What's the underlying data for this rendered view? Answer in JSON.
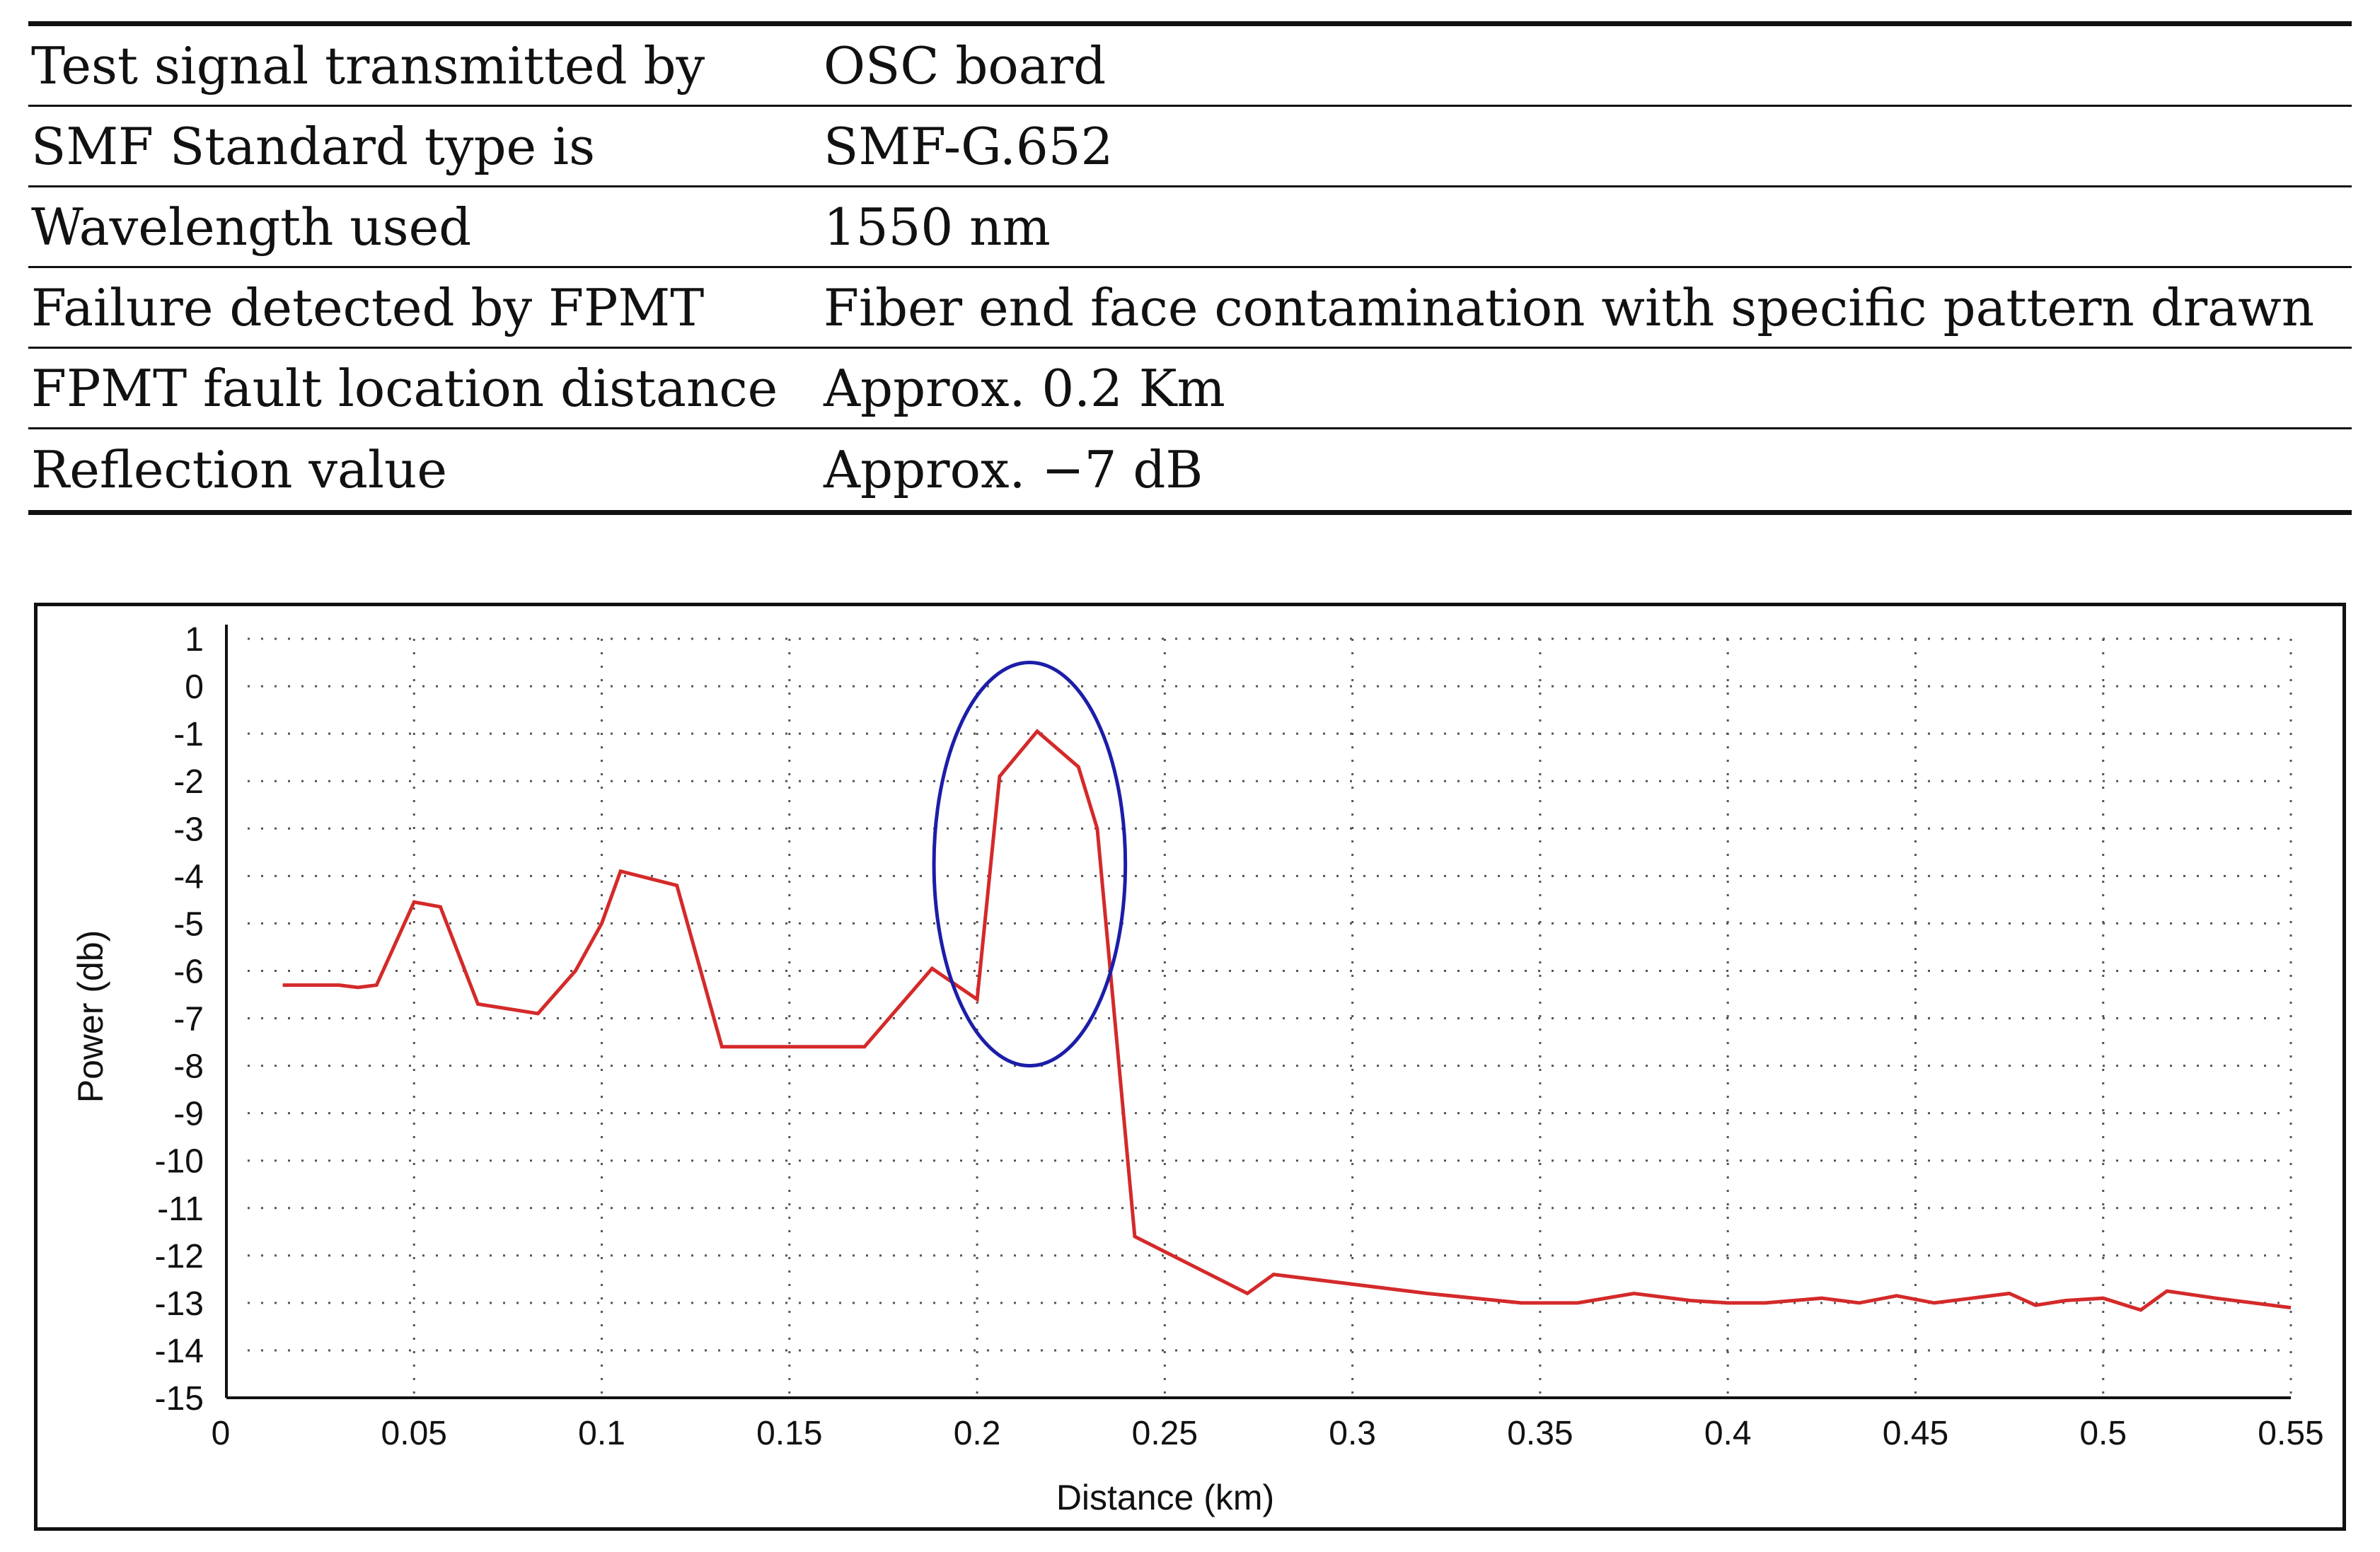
{
  "table": {
    "rows": [
      {
        "label": "Test signal transmitted by",
        "value": "OSC board"
      },
      {
        "label": "SMF Standard type is",
        "value": "SMF-G.652"
      },
      {
        "label": "Wavelength used",
        "value": "1550 nm"
      },
      {
        "label": "Failure detected by FPMT",
        "value": "Fiber end face contamination with specific pattern drawn"
      },
      {
        "label": "FPMT fault location distance",
        "value": "Approx. 0.2 Km"
      },
      {
        "label": "Reflection value",
        "value": "Approx. −7 dB"
      }
    ]
  },
  "chart_data": {
    "type": "line",
    "title": "",
    "xlabel": "Distance (km)",
    "ylabel": "Power (db)",
    "xlim": [
      0,
      0.55
    ],
    "ylim": [
      -15,
      1
    ],
    "x_ticks": [
      0,
      0.05,
      0.1,
      0.15,
      0.2,
      0.25,
      0.3,
      0.35,
      0.4,
      0.45,
      0.5,
      0.55
    ],
    "x_tick_labels": [
      "0",
      "0.05",
      "0.1",
      "0.15",
      "0.2",
      "0.25",
      "0.3",
      "0.35",
      "0.4",
      "0.45",
      "0.5",
      "0.55"
    ],
    "y_ticks": [
      1,
      0,
      -1,
      -2,
      -3,
      -4,
      -5,
      -6,
      -7,
      -8,
      -9,
      -10,
      -11,
      -12,
      -13,
      -14,
      -15
    ],
    "y_tick_labels": [
      "1",
      "0",
      "-1",
      "-2",
      "-3",
      "-4",
      "-5",
      "-6",
      "-7",
      "-8",
      "-9",
      "-10",
      "-11",
      "-12",
      "-13",
      "-14",
      "-15"
    ],
    "grid": true,
    "series": [
      {
        "name": "Power",
        "color": "#d42a2a",
        "x": [
          0.015,
          0.025,
          0.03,
          0.035,
          0.04,
          0.05,
          0.057,
          0.067,
          0.083,
          0.093,
          0.1,
          0.105,
          0.12,
          0.132,
          0.17,
          0.188,
          0.2,
          0.206,
          0.216,
          0.227,
          0.232,
          0.242,
          0.272,
          0.279,
          0.32,
          0.345,
          0.36,
          0.375,
          0.39,
          0.4,
          0.41,
          0.425,
          0.435,
          0.445,
          0.455,
          0.465,
          0.475,
          0.482,
          0.49,
          0.5,
          0.51,
          0.517,
          0.53,
          0.55
        ],
        "y": [
          -6.3,
          -6.3,
          -6.3,
          -6.35,
          -6.3,
          -4.55,
          -4.65,
          -6.7,
          -6.9,
          -6.0,
          -5.0,
          -3.9,
          -4.2,
          -7.6,
          -7.6,
          -5.95,
          -6.6,
          -1.9,
          -0.95,
          -1.7,
          -3.0,
          -11.6,
          -12.8,
          -12.4,
          -12.8,
          -13.0,
          -13.0,
          -12.8,
          -12.95,
          -13.0,
          -13.0,
          -12.9,
          -13.0,
          -12.85,
          -13.0,
          -12.9,
          -12.8,
          -13.05,
          -12.95,
          -12.9,
          -13.15,
          -12.75,
          -12.9,
          -13.1
        ]
      }
    ],
    "annotations": [
      {
        "type": "ellipse",
        "center": [
          0.214,
          -3.75
        ],
        "radius_x": 0.0255,
        "radius_y": 4.25,
        "color": "#1c1ea8"
      }
    ]
  }
}
